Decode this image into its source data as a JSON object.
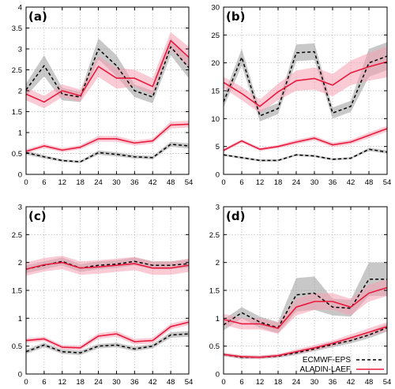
{
  "chart_data": [
    {
      "panel_label": "(a)",
      "type": "line",
      "x": [
        0,
        6,
        12,
        18,
        24,
        30,
        36,
        42,
        48,
        54
      ],
      "xticks": [
        "0",
        "6",
        "12",
        "18",
        "24",
        "30",
        "36",
        "42",
        "48",
        "54"
      ],
      "ylim": [
        0,
        4
      ],
      "yticks": [
        "0",
        "0.5",
        "1",
        "1.5",
        "2",
        "2.5",
        "3",
        "3.5",
        "4"
      ],
      "grid": true,
      "series": [
        {
          "name": "ECMWF-EPS",
          "color": "#000000",
          "dash": true,
          "band_color": "#9a9a9a",
          "values": [
            2.02,
            2.6,
            1.92,
            1.85,
            3.0,
            2.6,
            2.0,
            1.85,
            3.05,
            2.55
          ],
          "band": [
            0.15,
            0.25,
            0.15,
            0.12,
            0.25,
            0.25,
            0.15,
            0.15,
            0.2,
            0.25
          ]
        },
        {
          "name": "ALADIN-LAEF",
          "color": "#e8193c",
          "dash": false,
          "band_color": "#f7a0b2",
          "values": [
            1.92,
            1.73,
            2.0,
            1.88,
            2.58,
            2.3,
            2.3,
            2.1,
            3.2,
            2.8
          ],
          "band": [
            0.15,
            0.15,
            0.15,
            0.15,
            0.25,
            0.25,
            0.2,
            0.2,
            0.2,
            0.25
          ]
        },
        {
          "name": "ECMWF-EPS",
          "color": "#000000",
          "dash": true,
          "band_color": "#9a9a9a",
          "values": [
            0.52,
            0.42,
            0.33,
            0.3,
            0.52,
            0.48,
            0.42,
            0.4,
            0.72,
            0.68
          ],
          "band": [
            0.05,
            0.04,
            0.03,
            0.03,
            0.05,
            0.05,
            0.04,
            0.04,
            0.06,
            0.06
          ]
        },
        {
          "name": "ALADIN-LAEF",
          "color": "#e8193c",
          "dash": false,
          "band_color": "#f7a0b2",
          "values": [
            0.55,
            0.68,
            0.58,
            0.65,
            0.85,
            0.85,
            0.75,
            0.8,
            1.18,
            1.2
          ],
          "band": [
            0.05,
            0.05,
            0.05,
            0.05,
            0.07,
            0.07,
            0.06,
            0.06,
            0.08,
            0.08
          ]
        }
      ]
    },
    {
      "panel_label": "(b)",
      "type": "line",
      "x": [
        0,
        6,
        12,
        18,
        24,
        30,
        36,
        42,
        48,
        54
      ],
      "xticks": [
        "0",
        "6",
        "12",
        "18",
        "24",
        "30",
        "36",
        "42",
        "48",
        "54"
      ],
      "ylim": [
        0,
        30
      ],
      "yticks": [
        "0",
        "5",
        "10",
        "15",
        "20",
        "25",
        "30"
      ],
      "grid": true,
      "series": [
        {
          "name": "ECMWF-EPS",
          "color": "#000000",
          "dash": true,
          "band_color": "#9a9a9a",
          "values": [
            13.0,
            21.0,
            10.5,
            11.8,
            21.8,
            22.0,
            11.0,
            12.2,
            20.0,
            21.2
          ],
          "band": [
            1.0,
            1.5,
            1.0,
            1.0,
            1.5,
            1.5,
            1.0,
            1.0,
            2.5,
            2.5
          ]
        },
        {
          "name": "ALADIN-LAEF",
          "color": "#e8193c",
          "dash": false,
          "band_color": "#f7a0b2",
          "values": [
            16.5,
            14.5,
            12.2,
            14.8,
            16.8,
            17.2,
            16.0,
            18.2,
            19.3,
            20.2
          ],
          "band": [
            1.0,
            1.2,
            1.2,
            1.5,
            1.8,
            2.0,
            2.0,
            2.2,
            2.5,
            2.8
          ]
        },
        {
          "name": "ECMWF-EPS",
          "color": "#000000",
          "dash": true,
          "band_color": "#9a9a9a",
          "values": [
            3.5,
            3.0,
            2.5,
            2.5,
            3.5,
            3.3,
            2.7,
            2.9,
            4.5,
            4.0
          ],
          "band": [
            0.2,
            0.2,
            0.2,
            0.2,
            0.2,
            0.2,
            0.2,
            0.2,
            0.3,
            0.3
          ]
        },
        {
          "name": "ALADIN-LAEF",
          "color": "#e8193c",
          "dash": false,
          "band_color": "#f7a0b2",
          "values": [
            4.3,
            6.0,
            4.5,
            5.0,
            5.8,
            6.5,
            5.3,
            5.8,
            7.0,
            8.2
          ],
          "band": [
            0.3,
            0.3,
            0.3,
            0.3,
            0.4,
            0.4,
            0.4,
            0.4,
            0.5,
            0.5
          ]
        }
      ]
    },
    {
      "panel_label": "(c)",
      "type": "line",
      "x": [
        0,
        6,
        12,
        18,
        24,
        30,
        36,
        42,
        48,
        54
      ],
      "xticks": [
        "0",
        "6",
        "12",
        "18",
        "24",
        "30",
        "36",
        "42",
        "48",
        "54"
      ],
      "ylim": [
        0,
        3
      ],
      "yticks": [
        "0",
        "0.5",
        "1",
        "1.5",
        "2",
        "2.5",
        "3"
      ],
      "grid": true,
      "series": [
        {
          "name": "ECMWF-EPS",
          "color": "#000000",
          "dash": true,
          "band_color": "#9a9a9a",
          "values": [
            1.88,
            1.95,
            2.02,
            1.9,
            1.95,
            1.97,
            2.02,
            1.95,
            1.95,
            1.98
          ],
          "band": [
            0.07,
            0.07,
            0.07,
            0.07,
            0.07,
            0.07,
            0.07,
            0.07,
            0.07,
            0.07
          ]
        },
        {
          "name": "ALADIN-LAEF",
          "color": "#e8193c",
          "dash": false,
          "band_color": "#f7a0b2",
          "values": [
            1.88,
            1.96,
            2.0,
            1.9,
            1.92,
            1.95,
            1.98,
            1.9,
            1.9,
            1.95
          ],
          "band": [
            0.12,
            0.12,
            0.12,
            0.12,
            0.12,
            0.12,
            0.12,
            0.12,
            0.12,
            0.12
          ]
        },
        {
          "name": "ECMWF-EPS",
          "color": "#000000",
          "dash": true,
          "band_color": "#9a9a9a",
          "values": [
            0.4,
            0.52,
            0.4,
            0.38,
            0.5,
            0.52,
            0.45,
            0.5,
            0.7,
            0.72
          ],
          "band": [
            0.04,
            0.04,
            0.04,
            0.04,
            0.04,
            0.04,
            0.04,
            0.04,
            0.05,
            0.05
          ]
        },
        {
          "name": "ALADIN-LAEF",
          "color": "#e8193c",
          "dash": false,
          "band_color": "#f7a0b2",
          "values": [
            0.6,
            0.63,
            0.48,
            0.47,
            0.68,
            0.72,
            0.58,
            0.6,
            0.85,
            0.93
          ],
          "band": [
            0.04,
            0.04,
            0.04,
            0.04,
            0.05,
            0.05,
            0.05,
            0.05,
            0.05,
            0.05
          ]
        }
      ]
    },
    {
      "panel_label": "(d)",
      "type": "line",
      "x": [
        0,
        6,
        12,
        18,
        24,
        30,
        36,
        42,
        48,
        54
      ],
      "xticks": [
        "0",
        "6",
        "12",
        "18",
        "24",
        "30",
        "36",
        "42",
        "48",
        "54"
      ],
      "ylim": [
        0,
        3
      ],
      "yticks": [
        "0",
        "0.5",
        "1",
        "1.5",
        "2",
        "2.5",
        "3"
      ],
      "grid": true,
      "series": [
        {
          "name": "ECMWF-EPS",
          "color": "#000000",
          "dash": true,
          "band_color": "#9a9a9a",
          "values": [
            0.88,
            1.1,
            0.93,
            0.83,
            1.42,
            1.45,
            1.2,
            1.18,
            1.7,
            1.7
          ],
          "band": [
            0.1,
            0.1,
            0.1,
            0.1,
            0.3,
            0.3,
            0.15,
            0.15,
            0.3,
            0.3
          ]
        },
        {
          "name": "ALADIN-LAEF",
          "color": "#e8193c",
          "dash": false,
          "band_color": "#f7a0b2",
          "values": [
            0.98,
            0.9,
            0.9,
            0.82,
            1.2,
            1.3,
            1.3,
            1.2,
            1.45,
            1.55
          ],
          "band": [
            0.1,
            0.1,
            0.1,
            0.1,
            0.15,
            0.15,
            0.15,
            0.15,
            0.15,
            0.15
          ]
        },
        {
          "name": "ECMWF-EPS",
          "color": "#000000",
          "dash": true,
          "band_color": "#9a9a9a",
          "values": [
            0.35,
            0.3,
            0.3,
            0.32,
            0.38,
            0.45,
            0.53,
            0.6,
            0.7,
            0.83
          ],
          "band": [
            0.03,
            0.03,
            0.03,
            0.03,
            0.04,
            0.04,
            0.05,
            0.05,
            0.06,
            0.07
          ]
        },
        {
          "name": "ALADIN-LAEF",
          "color": "#e8193c",
          "dash": false,
          "band_color": "#f7a0b2",
          "values": [
            0.35,
            0.31,
            0.3,
            0.33,
            0.4,
            0.47,
            0.55,
            0.65,
            0.75,
            0.85
          ],
          "band": [
            0.03,
            0.03,
            0.03,
            0.03,
            0.04,
            0.05,
            0.05,
            0.06,
            0.07,
            0.08
          ]
        }
      ]
    }
  ],
  "legend": {
    "placement": "bottom-right of panel (d)",
    "entries": [
      {
        "label": "ECMWF-EPS",
        "color": "#000000",
        "dash": true
      },
      {
        "label": "ALADIN-LAEF",
        "color": "#e8193c",
        "dash": false
      }
    ]
  }
}
